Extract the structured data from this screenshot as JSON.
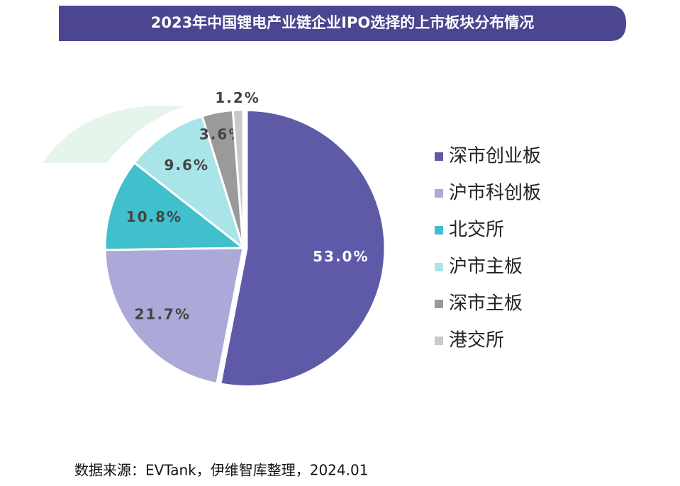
{
  "chart_data": {
    "type": "pie",
    "title": "2023年中国锂电产业链企业IPO选择的上市板块分布情况",
    "categories": [
      "深市创业板",
      "沪市科创板",
      "北交所",
      "沪市主板",
      "深市主板",
      "港交所"
    ],
    "values": [
      53.0,
      21.7,
      10.8,
      9.6,
      3.6,
      1.2
    ],
    "value_labels": [
      "53.0%",
      "21.7%",
      "10.8%",
      "9.6%",
      "3.6%",
      "1.2%"
    ],
    "colors": [
      "#5f5aa8",
      "#aaa9d8",
      "#3fc0cc",
      "#a9e4e9",
      "#9a9a9a",
      "#c9c9c9"
    ],
    "legend": "right",
    "source": "数据来源：EVTank，伊维智库整理，2024.01"
  }
}
